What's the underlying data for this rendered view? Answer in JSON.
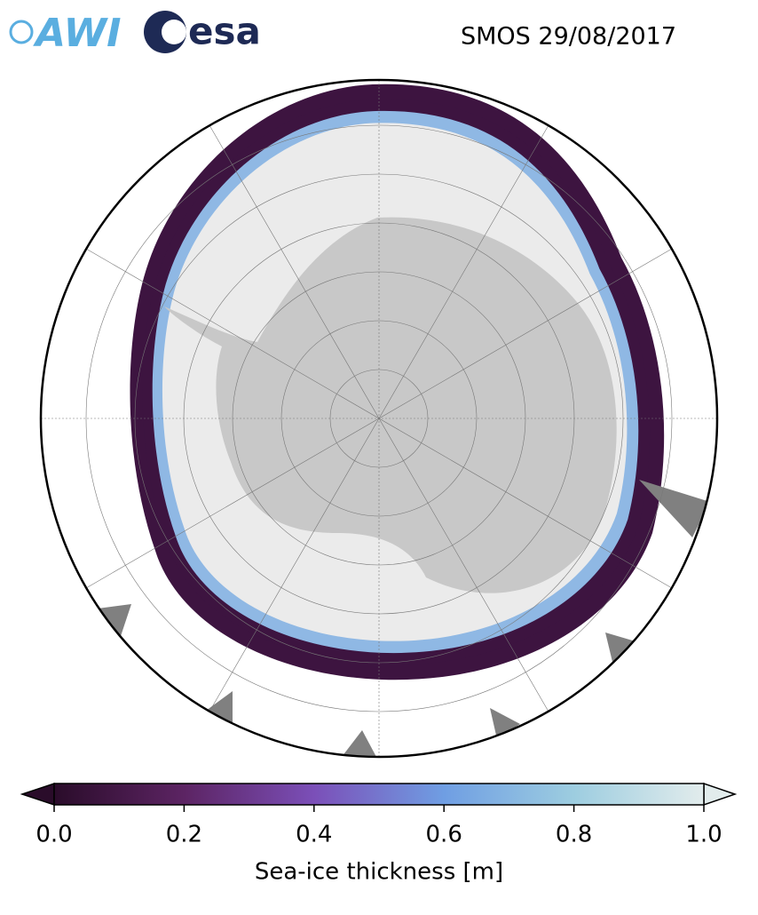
{
  "logos": {
    "awi": "AWI",
    "esa": "esa"
  },
  "title": "SMOS 29/08/2017",
  "colorbar": {
    "label": "Sea-ice thickness [m]",
    "range": [
      0,
      1
    ],
    "ticks": [
      {
        "value": 0,
        "label": "0.0"
      },
      0.2,
      0.4,
      0.6,
      0.8,
      {
        "value": 1,
        "label": "1.0"
      }
    ],
    "colors": [
      "#2a0c2a",
      "#5c2463",
      "#7b4fb8",
      "#6f9ee3",
      "#9dcde0",
      "#e2ecec"
    ]
  }
}
